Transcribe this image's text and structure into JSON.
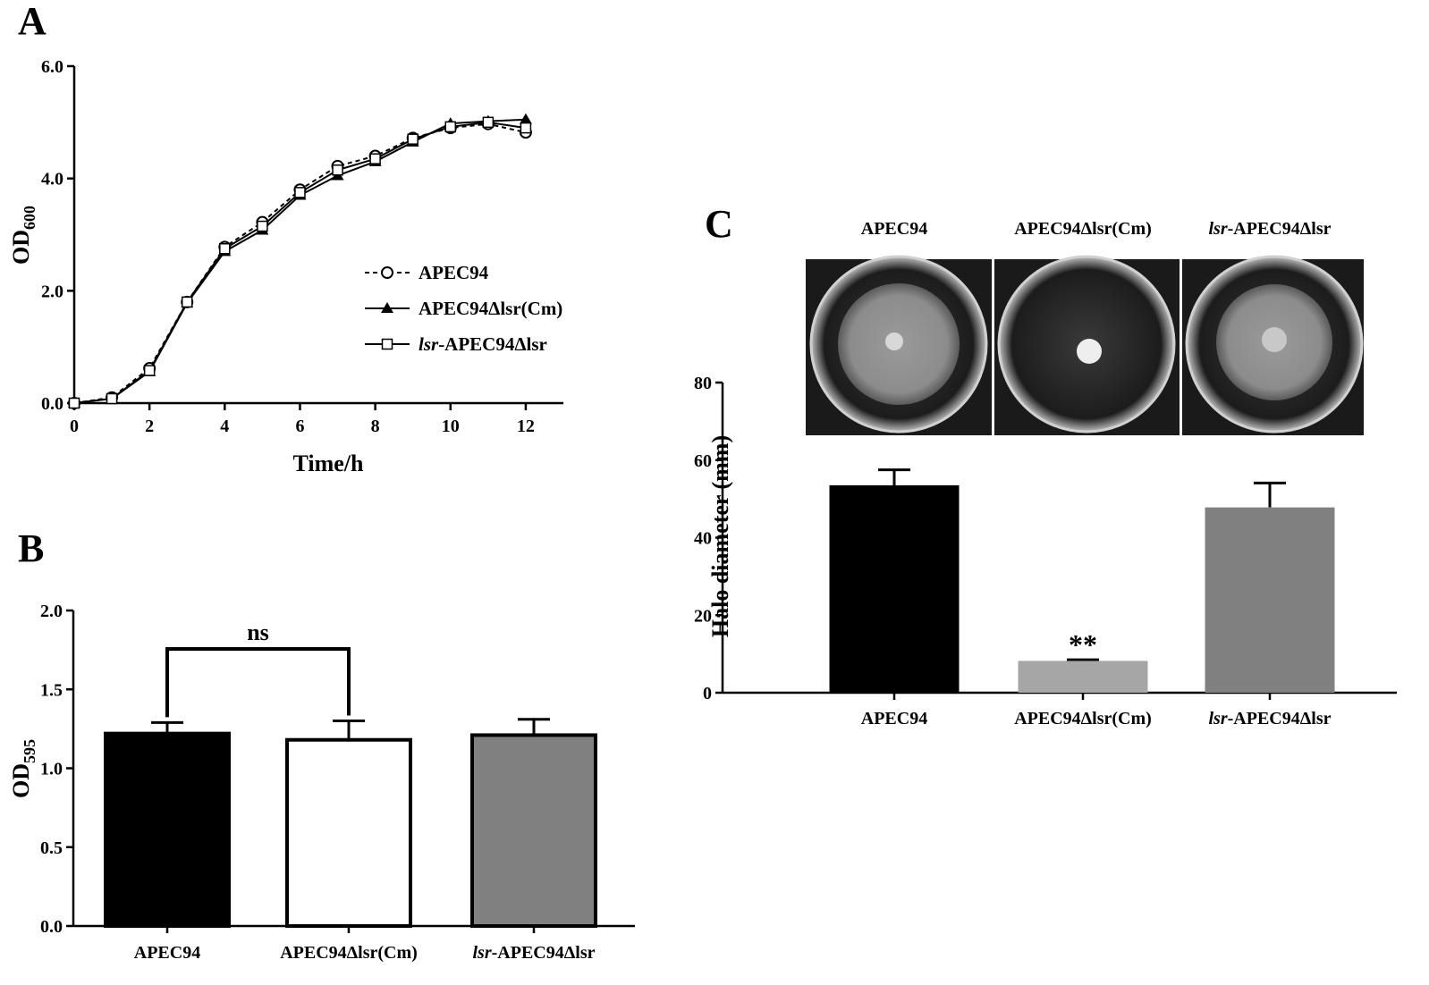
{
  "chart_data": [
    {
      "type": "line",
      "panel": "A",
      "x_label": "Time/h",
      "y_label": "OD",
      "y_label_sub": "600",
      "x": [
        0,
        1,
        2,
        3,
        4,
        5,
        6,
        7,
        8,
        9,
        10,
        11,
        12
      ],
      "xlim": [
        0,
        13
      ],
      "xticks": [
        0,
        2,
        4,
        6,
        8,
        10,
        12
      ],
      "ylim": [
        0,
        6
      ],
      "yticks": [
        {
          "value": 0,
          "label": "0.0"
        },
        {
          "value": 2,
          "label": "2.0"
        },
        {
          "value": 4,
          "label": "4.0"
        },
        {
          "value": 6,
          "label": "6.0"
        }
      ],
      "series": [
        {
          "name": "APEC94",
          "color": "#000000",
          "marker": "circle-open",
          "dashed": true,
          "values": [
            0,
            0.1,
            0.62,
            1.8,
            2.78,
            3.22,
            3.8,
            4.22,
            4.4,
            4.72,
            4.9,
            4.97,
            4.82
          ]
        },
        {
          "name": "APEC94Δlsr(Cm)",
          "color": "#000000",
          "marker": "triangle",
          "dashed": false,
          "values": [
            0,
            0.08,
            0.56,
            1.78,
            2.7,
            3.08,
            3.7,
            4.05,
            4.3,
            4.65,
            4.98,
            5.02,
            5.05
          ]
        },
        {
          "name": "lsr-APEC94Δlsr",
          "color": "#000000",
          "marker": "square-open",
          "dashed": false,
          "values": [
            0,
            0.08,
            0.58,
            1.8,
            2.75,
            3.15,
            3.75,
            4.15,
            4.35,
            4.7,
            4.92,
            5.0,
            4.9
          ]
        }
      ]
    },
    {
      "type": "bar",
      "panel": "B",
      "y_label": "OD",
      "y_label_sub": "595",
      "categories": [
        "APEC94",
        "APEC94Δlsr(Cm)",
        "lsr-APEC94Δlsr"
      ],
      "values": [
        1.22,
        1.18,
        1.21
      ],
      "errors": [
        0.07,
        0.12,
        0.1
      ],
      "colors": [
        "#000000",
        "#ffffff",
        "#808080"
      ],
      "ylim": [
        0,
        2
      ],
      "yticks": [
        {
          "value": 0,
          "label": "0.0"
        },
        {
          "value": 0.5,
          "label": "0.5"
        },
        {
          "value": 1,
          "label": "1.0"
        },
        {
          "value": 1.5,
          "label": "1.5"
        },
        {
          "value": 2,
          "label": "2.0"
        }
      ],
      "annotation": "ns"
    },
    {
      "type": "bar",
      "panel": "C",
      "y_label": "Halo diameter (mm)",
      "categories": [
        "APEC94",
        "APEC94Δlsr(Cm)",
        "lsr-APEC94Δlsr"
      ],
      "values": [
        53.5,
        8.2,
        47.8
      ],
      "errors": [
        4,
        0.3,
        6.3
      ],
      "colors": [
        "#000000",
        "#a6a6a6",
        "#808080"
      ],
      "ylim": [
        0,
        80
      ],
      "yticks": [
        0,
        20,
        40,
        60,
        80
      ],
      "annotation": "**"
    }
  ]
}
